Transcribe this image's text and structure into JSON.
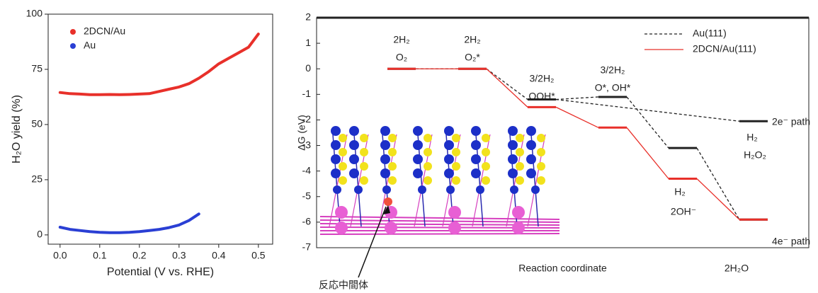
{
  "chart_data": [
    {
      "type": "line",
      "xlabel": "Potential (V vs. RHE)",
      "ylabel": "H₂O yield (%)",
      "xlim": [
        -0.03,
        0.536
      ],
      "ylim": [
        -4.2,
        100
      ],
      "xticks": [
        {
          "value": 0,
          "label": "0.0"
        },
        0.1,
        0.2,
        0.3,
        0.4,
        0.5
      ],
      "yticks": [
        0,
        25,
        50,
        75,
        100
      ],
      "legend": "upper-left",
      "series": [
        {
          "name": "2DCN/Au",
          "color": "#e8302a",
          "x": [
            0,
            0.025,
            0.05,
            0.075,
            0.1,
            0.125,
            0.15,
            0.175,
            0.2,
            0.225,
            0.25,
            0.275,
            0.3,
            0.325,
            0.35,
            0.375,
            0.4,
            0.425,
            0.45,
            0.475,
            0.5
          ],
          "values": [
            64.5,
            64,
            63.8,
            63.5,
            63.5,
            63.6,
            63.5,
            63.6,
            63.8,
            64,
            65,
            66,
            67,
            68.5,
            71,
            74,
            77.5,
            80,
            82.5,
            85,
            91
          ]
        },
        {
          "name": "Au",
          "color": "#2a3fd4",
          "x": [
            0,
            0.025,
            0.05,
            0.075,
            0.1,
            0.125,
            0.15,
            0.175,
            0.2,
            0.225,
            0.25,
            0.275,
            0.3,
            0.325,
            0.35
          ],
          "values": [
            3.5,
            2.5,
            2,
            1.5,
            1.2,
            1,
            1,
            1.2,
            1.5,
            2,
            2.5,
            3.3,
            4.5,
            6.5,
            9.5
          ]
        }
      ]
    },
    {
      "type": "energy-diagram",
      "xlabel": "Reaction coordinate",
      "ylabel": "ΔG (eV)",
      "ylim": [
        -7,
        2
      ],
      "yticks": [
        -7,
        -6,
        -5,
        -4,
        -3,
        -2,
        -1,
        0,
        1,
        2
      ],
      "legend": "upper-right",
      "series": [
        {
          "name": "Au(111)",
          "color": "#222222",
          "dash": true,
          "values": [
            0,
            0,
            -1.2,
            -1.1,
            -3.1,
            -5.9
          ],
          "branch_value": -2.05
        },
        {
          "name": "2DCN/Au(111)",
          "color": "#e8302a",
          "dash": false,
          "values": [
            0,
            0,
            -1.5,
            -2.3,
            -4.3,
            -5.9
          ]
        }
      ],
      "annotations": [
        "2H₂",
        "O₂",
        "2H₂",
        "O₂*",
        "3/2H₂",
        "OOH*",
        "3/2H₂",
        "O*, OH*",
        "H₂",
        "2OH⁻",
        "2H₂O",
        "H₂",
        "H₂O₂",
        "2e⁻ path",
        "4e⁻ path",
        "反応中間体"
      ]
    }
  ]
}
